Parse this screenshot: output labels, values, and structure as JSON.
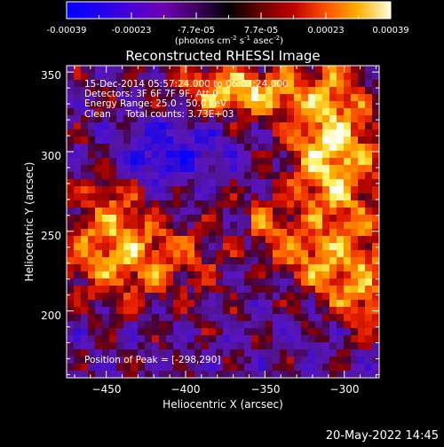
{
  "colorbar": {
    "ticks": [
      "-0.00039",
      "-0.00023",
      "-7.7e-05",
      "7.7e-05",
      "0.00023",
      "0.00039"
    ],
    "unit_label": "(photons cm",
    "unit_exp1": "-2",
    "unit_mid": " s",
    "unit_exp2": "-1",
    "unit_end": " asec",
    "unit_exp3": "-2",
    "unit_close": ")",
    "colors": [
      "#0000ff",
      "#3a00e8",
      "#6d00b8",
      "#1a001a",
      "#500010",
      "#a00000",
      "#e02800",
      "#ff7000",
      "#ffb000",
      "#ffff60",
      "#ffffff"
    ]
  },
  "chart_data": {
    "type": "heatmap",
    "title": "Reconstructed RHESSI Image",
    "xlabel": "Heliocentric X (arcsec)",
    "ylabel": "Heliocentric Y (arcsec)",
    "xlim": [
      -475,
      -278
    ],
    "ylim": [
      158,
      354
    ],
    "xticks": [
      -450,
      -400,
      -350,
      -300
    ],
    "yticks": [
      200,
      250,
      300,
      350
    ],
    "xtick_labels": [
      "−450",
      "−400",
      "−350",
      "−300"
    ],
    "ytick_labels": [
      "200",
      "250",
      "300",
      "350"
    ],
    "peak": [
      -298,
      290
    ],
    "annotations": [
      "15-Dec-2014 05:57:24.000 to 06:03:24.000",
      "Detectors: 3F 6F 7F 9F, Att 0",
      "Energy Range: 25.0 - 50.0 keV",
      "Clean     Total counts: 3.73E+03"
    ],
    "peak_label": "Position of Peak = [-298,290]"
  },
  "footer": {
    "timestamp": "20-May-2022 14:45"
  }
}
